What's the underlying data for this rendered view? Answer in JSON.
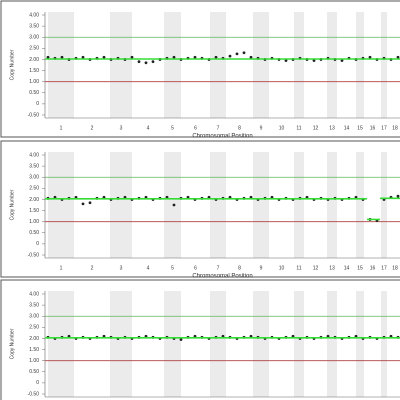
{
  "chart_data": [
    {
      "type": "scatter",
      "y_label": "Copy Number",
      "x_label": "Chromosomal Position",
      "xlim": [
        0,
        355
      ],
      "ylim": [
        -0.5,
        4
      ],
      "yticks": [
        {
          "value": 4,
          "label": "4.00"
        },
        {
          "value": 3.5,
          "label": "3.50"
        },
        {
          "value": 3,
          "label": "3.00"
        },
        {
          "value": 2.5,
          "label": "2.50"
        },
        {
          "value": 2,
          "label": "2.00"
        },
        {
          "value": 1.5,
          "label": "1.50"
        },
        {
          "value": 1,
          "label": "1.00"
        },
        {
          "value": 0.5,
          "label": "0.50"
        },
        0,
        {
          "value": -0.5,
          "label": "-0.50"
        }
      ],
      "ref_lines": [
        {
          "value": 3,
          "color": "#5cb85c"
        },
        {
          "value": 1,
          "color": "#b04040"
        }
      ],
      "chromosomes": [
        {
          "label": "1",
          "start": 0,
          "end": 32
        },
        {
          "label": "2",
          "start": 32,
          "end": 62
        },
        {
          "label": "3",
          "start": 62,
          "end": 90
        },
        {
          "label": "4",
          "start": 90,
          "end": 116
        },
        {
          "label": "5",
          "start": 116,
          "end": 139
        },
        {
          "label": "6",
          "start": 139,
          "end": 162
        },
        {
          "label": "7",
          "start": 162,
          "end": 184
        },
        {
          "label": "8",
          "start": 184,
          "end": 205
        },
        {
          "label": "9",
          "start": 205,
          "end": 227
        },
        {
          "label": "10",
          "start": 227,
          "end": 246
        },
        {
          "label": "11",
          "start": 246,
          "end": 262
        },
        {
          "label": "12",
          "start": 262,
          "end": 279
        },
        {
          "label": "13",
          "start": 279,
          "end": 295
        },
        {
          "label": "14",
          "start": 295,
          "end": 308
        },
        {
          "label": "15",
          "start": 308,
          "end": 322
        },
        {
          "label": "16",
          "start": 322,
          "end": 333
        },
        {
          "label": "17",
          "start": 333,
          "end": 345
        },
        {
          "label": "18",
          "start": 345,
          "end": 355
        }
      ],
      "x": [
        3,
        10,
        17,
        24,
        31,
        38,
        45,
        52,
        59,
        66,
        73,
        80,
        87,
        94,
        101,
        108,
        115,
        122,
        129,
        136,
        143,
        150,
        157,
        164,
        171,
        178,
        185,
        192,
        199,
        206,
        213,
        220,
        227,
        234,
        241,
        248,
        255,
        262,
        269,
        276,
        283,
        290,
        297,
        304,
        311,
        318,
        325,
        332,
        339,
        346,
        353
      ],
      "values": [
        2.1,
        2.05,
        2.1,
        2.0,
        2.05,
        2.1,
        2.0,
        2.05,
        2.1,
        2.0,
        2.05,
        2.0,
        2.1,
        1.9,
        1.85,
        1.9,
        2.0,
        2.05,
        2.1,
        2.0,
        2.05,
        2.1,
        2.05,
        2.0,
        2.1,
        2.05,
        2.15,
        2.25,
        2.3,
        2.1,
        2.05,
        2.0,
        2.05,
        2.0,
        1.95,
        2.0,
        2.05,
        2.0,
        1.95,
        2.0,
        2.05,
        2.0,
        1.95,
        2.05,
        2.0,
        2.05,
        2.1,
        2.0,
        2.05,
        2.0,
        2.1
      ],
      "color": "#222222",
      "segments": [
        {
          "start": 0,
          "end": 355,
          "value": 2.02
        }
      ],
      "segment_color": "#33dd33"
    },
    {
      "type": "scatter",
      "y_label": "Copy Number",
      "x_label": "Chromosomal Position",
      "xlim": [
        0,
        355
      ],
      "ylim": [
        -0.5,
        4
      ],
      "yticks": [
        {
          "value": 4,
          "label": "4.00"
        },
        {
          "value": 3.5,
          "label": "3.50"
        },
        {
          "value": 3,
          "label": "3.00"
        },
        {
          "value": 2.5,
          "label": "2.50"
        },
        {
          "value": 2,
          "label": "2.00"
        },
        {
          "value": 1.5,
          "label": "1.50"
        },
        {
          "value": 1,
          "label": "1.00"
        },
        {
          "value": 0.5,
          "label": "0.50"
        },
        0,
        {
          "value": -0.5,
          "label": "-0.50"
        }
      ],
      "ref_lines": [
        {
          "value": 3,
          "color": "#5cb85c"
        },
        {
          "value": 1,
          "color": "#b04040"
        }
      ],
      "chromosomes": [
        {
          "label": "1",
          "start": 0,
          "end": 32
        },
        {
          "label": "2",
          "start": 32,
          "end": 62
        },
        {
          "label": "3",
          "start": 62,
          "end": 90
        },
        {
          "label": "4",
          "start": 90,
          "end": 116
        },
        {
          "label": "5",
          "start": 116,
          "end": 139
        },
        {
          "label": "6",
          "start": 139,
          "end": 162
        },
        {
          "label": "7",
          "start": 162,
          "end": 184
        },
        {
          "label": "8",
          "start": 184,
          "end": 205
        },
        {
          "label": "9",
          "start": 205,
          "end": 227
        },
        {
          "label": "10",
          "start": 227,
          "end": 246
        },
        {
          "label": "11",
          "start": 246,
          "end": 262
        },
        {
          "label": "12",
          "start": 262,
          "end": 279
        },
        {
          "label": "13",
          "start": 279,
          "end": 295
        },
        {
          "label": "14",
          "start": 295,
          "end": 308
        },
        {
          "label": "15",
          "start": 308,
          "end": 322
        },
        {
          "label": "16",
          "start": 322,
          "end": 333
        },
        {
          "label": "17",
          "start": 333,
          "end": 345
        },
        {
          "label": "18",
          "start": 345,
          "end": 355
        }
      ],
      "x": [
        3,
        10,
        17,
        24,
        31,
        38,
        45,
        52,
        59,
        66,
        73,
        80,
        87,
        94,
        101,
        108,
        115,
        122,
        129,
        136,
        143,
        150,
        157,
        164,
        171,
        178,
        185,
        192,
        199,
        206,
        213,
        220,
        227,
        234,
        241,
        248,
        255,
        262,
        269,
        276,
        283,
        290,
        297,
        304,
        311,
        318,
        325,
        332,
        339,
        346,
        353
      ],
      "values": [
        2.05,
        2.1,
        2.0,
        2.05,
        2.1,
        1.8,
        1.85,
        2.05,
        2.1,
        2.0,
        2.05,
        2.1,
        2.0,
        2.05,
        2.1,
        2.0,
        2.05,
        2.1,
        1.75,
        2.05,
        2.1,
        2.0,
        2.05,
        2.1,
        2.0,
        2.05,
        2.1,
        2.0,
        2.05,
        2.1,
        2.0,
        2.05,
        2.1,
        2.0,
        2.05,
        2.0,
        2.05,
        2.1,
        2.0,
        2.05,
        2.0,
        2.05,
        2.0,
        2.05,
        2.1,
        2.0,
        1.1,
        1.05,
        2.0,
        2.1,
        2.15
      ],
      "color": "#222222",
      "segments": [
        {
          "start": 0,
          "end": 322,
          "value": 2.03
        },
        {
          "start": 322,
          "end": 335,
          "value": 1.1
        },
        {
          "start": 335,
          "end": 355,
          "value": 2.05
        }
      ],
      "segment_color": "#33dd33"
    },
    {
      "type": "scatter",
      "y_label": "Copy Number",
      "xlim": [
        0,
        355
      ],
      "ylim": [
        -0.5,
        4
      ],
      "yticks": [
        {
          "value": 4,
          "label": "4.00"
        },
        {
          "value": 3.5,
          "label": "3.50"
        },
        {
          "value": 3,
          "label": "3.00"
        },
        {
          "value": 2.5,
          "label": "2.50"
        },
        {
          "value": 2,
          "label": "2.00"
        },
        {
          "value": 1.5,
          "label": "1.50"
        },
        {
          "value": 1,
          "label": "1.00"
        },
        {
          "value": 0.5,
          "label": "0.50"
        },
        0,
        {
          "value": -0.5,
          "label": "-0.50"
        }
      ],
      "ref_lines": [
        {
          "value": 3,
          "color": "#5cb85c"
        },
        {
          "value": 1,
          "color": "#b04040"
        }
      ],
      "chromosomes": [
        {
          "start": 0,
          "end": 32
        },
        {
          "start": 32,
          "end": 62
        },
        {
          "start": 62,
          "end": 90
        },
        {
          "start": 90,
          "end": 116
        },
        {
          "start": 116,
          "end": 139
        },
        {
          "start": 139,
          "end": 162
        },
        {
          "start": 162,
          "end": 184
        },
        {
          "start": 184,
          "end": 205
        },
        {
          "start": 205,
          "end": 227
        },
        {
          "start": 227,
          "end": 246
        },
        {
          "start": 246,
          "end": 262
        },
        {
          "start": 262,
          "end": 279
        },
        {
          "start": 279,
          "end": 295
        },
        {
          "start": 295,
          "end": 308
        },
        {
          "start": 308,
          "end": 322
        },
        {
          "start": 322,
          "end": 333
        },
        {
          "start": 333,
          "end": 345
        },
        {
          "start": 345,
          "end": 355
        }
      ],
      "x": [
        3,
        10,
        17,
        24,
        31,
        38,
        45,
        52,
        59,
        66,
        73,
        80,
        87,
        94,
        101,
        108,
        115,
        122,
        129,
        136,
        143,
        150,
        157,
        164,
        171,
        178,
        185,
        192,
        199,
        206,
        213,
        220,
        227,
        234,
        241,
        248,
        255,
        262,
        269,
        276,
        283,
        290,
        297,
        304,
        311,
        318,
        325,
        332,
        339,
        346,
        353
      ],
      "values": [
        2.05,
        2.0,
        2.05,
        2.1,
        2.0,
        2.05,
        2.0,
        2.05,
        2.1,
        2.05,
        2.0,
        2.05,
        2.0,
        2.05,
        2.1,
        2.05,
        2.0,
        2.05,
        2.0,
        1.95,
        2.05,
        2.1,
        2.05,
        2.0,
        2.05,
        2.1,
        2.05,
        2.0,
        2.05,
        2.1,
        2.05,
        2.0,
        2.05,
        2.0,
        2.05,
        2.1,
        2.0,
        2.05,
        2.0,
        2.05,
        2.1,
        2.05,
        2.0,
        2.05,
        2.1,
        2.0,
        2.05,
        2.0,
        2.05,
        2.1,
        2.05
      ],
      "color": "#222222",
      "segments": [
        {
          "start": 0,
          "end": 355,
          "value": 2.03
        }
      ],
      "segment_color": "#33dd33"
    }
  ]
}
